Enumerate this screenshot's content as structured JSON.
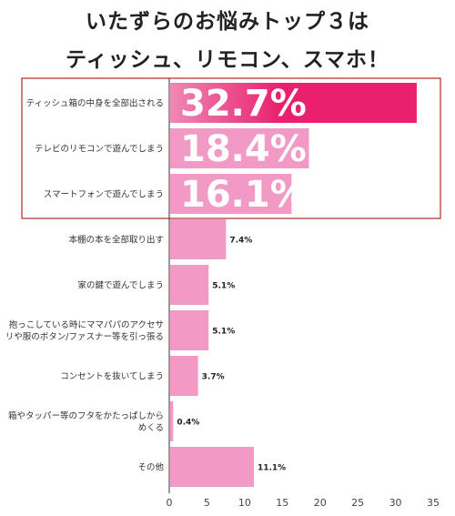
{
  "title_line1": "いたずらのお悩みトップ３は",
  "title_line2": "ティッシュ、リモコン、スマホ！",
  "colors": {
    "top_bar": "#e8206e",
    "top_bar_light": "#ef88b4",
    "bar": "#f19ac5",
    "highlight_border": "#b02a2a",
    "axis": "#333333"
  },
  "chart_data": {
    "type": "bar",
    "orientation": "horizontal",
    "title": "いたずらのお悩みトップ３は ティッシュ、リモコン、スマホ！",
    "xlabel": "",
    "ylabel": "",
    "xlim": [
      0,
      35
    ],
    "x_ticks": [
      0,
      5,
      10,
      15,
      20,
      25,
      30,
      35
    ],
    "grid": false,
    "categories": [
      [
        "ティッシュ箱の中身を全部出される"
      ],
      [
        "テレビのリモコンで遊んでしまう"
      ],
      [
        "スマートフォンで遊んでしまう"
      ],
      [
        "本棚の本を全部取り出す"
      ],
      [
        "家の鍵で遊んでしまう"
      ],
      [
        "抱っこしている時にママパパのアクセサ",
        "リや服のボタン/ファスナー等を引っ張る"
      ],
      [
        "コンセントを抜いてしまう"
      ],
      [
        "箱やタッパー等のフタをかたっぱしから",
        "めくる"
      ],
      [
        "その他"
      ]
    ],
    "values": [
      32.7,
      18.4,
      16.1,
      7.4,
      5.1,
      5.1,
      3.7,
      0.4,
      11.1
    ],
    "labels": [
      "32.7%",
      "18.4%",
      "16.1%",
      "7.4%",
      "5.1%",
      "5.1%",
      "3.7%",
      "0.4%",
      "11.1%"
    ],
    "highlighted_top": 3
  }
}
